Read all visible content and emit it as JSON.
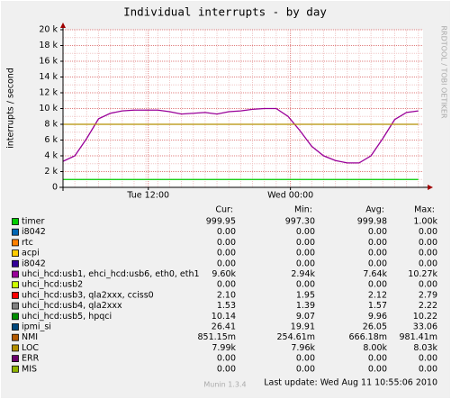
{
  "chart_data": {
    "type": "line",
    "title": "Individual interrupts - by day",
    "y_label": "interrupts / second",
    "side_label": "RRDTOOL / TOBI OETIKER",
    "x": [
      0,
      1,
      2,
      3,
      4,
      5,
      6,
      7,
      8,
      9,
      10,
      11,
      12,
      13,
      14,
      15,
      16,
      17,
      18,
      19,
      20,
      21,
      22,
      23,
      24,
      25,
      26,
      27,
      28,
      29,
      30
    ],
    "xlim": [
      0,
      30.4
    ],
    "xticks": [
      {
        "value": 7.2,
        "label": "Tue 12:00"
      },
      {
        "value": 19.2,
        "label": "Wed 00:00"
      }
    ],
    "ylim": [
      0,
      20000
    ],
    "yticks": [
      {
        "value": 0,
        "label": "0"
      },
      {
        "value": 2000,
        "label": "2 k"
      },
      {
        "value": 4000,
        "label": "4 k"
      },
      {
        "value": 6000,
        "label": "6 k"
      },
      {
        "value": 8000,
        "label": "8 k"
      },
      {
        "value": 10000,
        "label": "10 k"
      },
      {
        "value": 12000,
        "label": "12 k"
      },
      {
        "value": 14000,
        "label": "14 k"
      },
      {
        "value": 16000,
        "label": "16 k"
      },
      {
        "value": 18000,
        "label": "18 k"
      },
      {
        "value": 20000,
        "label": "20 k"
      }
    ],
    "grid": true,
    "columns": [
      "Cur:",
      "Min:",
      "Avg:",
      "Max:"
    ],
    "series": [
      {
        "name": "timer",
        "color": "#00cc00",
        "cur": "999.95",
        "min": "997.30",
        "avg": "999.98",
        "max": "1.00k",
        "values": [
          1000,
          1000,
          1000,
          1000,
          1000,
          1000,
          1000,
          1000,
          1000,
          1000,
          1000,
          1000,
          1000,
          1000,
          1000,
          1000,
          1000,
          1000,
          1000,
          1000,
          1000,
          1000,
          1000,
          1000,
          1000,
          1000,
          1000,
          1000,
          1000,
          1000,
          1000
        ]
      },
      {
        "name": "i8042",
        "color": "#0066b3",
        "cur": "0.00",
        "min": "0.00",
        "avg": "0.00",
        "max": "0.00"
      },
      {
        "name": "rtc",
        "color": "#ff8000",
        "cur": "0.00",
        "min": "0.00",
        "avg": "0.00",
        "max": "0.00"
      },
      {
        "name": "acpi",
        "color": "#ffcc00",
        "cur": "0.00",
        "min": "0.00",
        "avg": "0.00",
        "max": "0.00"
      },
      {
        "name": "i8042",
        "color": "#330099",
        "cur": "0.00",
        "min": "0.00",
        "avg": "0.00",
        "max": "0.00"
      },
      {
        "name": "uhci_hcd:usb1, ehci_hcd:usb6, eth0, eth1",
        "color": "#990099",
        "cur": "9.60k",
        "min": "2.94k",
        "avg": "7.64k",
        "max": "10.27k",
        "values": [
          3300,
          4000,
          6200,
          8700,
          9400,
          9700,
          9800,
          9800,
          9800,
          9600,
          9300,
          9400,
          9500,
          9300,
          9600,
          9700,
          9900,
          10000,
          10000,
          9000,
          7200,
          5200,
          4000,
          3400,
          3100,
          3100,
          4000,
          6200,
          8600,
          9500,
          9700
        ]
      },
      {
        "name": "uhci_hcd:usb2",
        "color": "#ccff00",
        "cur": "0.00",
        "min": "0.00",
        "avg": "0.00",
        "max": "0.00"
      },
      {
        "name": "uhci_hcd:usb3, qla2xxx, cciss0",
        "color": "#ff0000",
        "cur": "2.10",
        "min": "1.95",
        "avg": "2.12",
        "max": "2.79"
      },
      {
        "name": "uhci_hcd:usb4, qla2xxx",
        "color": "#808080",
        "cur": "1.53",
        "min": "1.39",
        "avg": "1.57",
        "max": "2.22"
      },
      {
        "name": "uhci_hcd:usb5, hpqci",
        "color": "#008f00",
        "cur": "10.14",
        "min": "9.07",
        "avg": "9.96",
        "max": "10.22"
      },
      {
        "name": "ipmi_si",
        "color": "#00487d",
        "cur": "26.41",
        "min": "19.91",
        "avg": "26.05",
        "max": "33.06"
      },
      {
        "name": "NMI",
        "color": "#b35a00",
        "cur": "851.15m",
        "min": "254.61m",
        "avg": "666.18m",
        "max": "981.41m"
      },
      {
        "name": "LOC",
        "color": "#b38f00",
        "cur": "7.99k",
        "min": "7.96k",
        "avg": "8.00k",
        "max": "8.03k",
        "values": [
          8000,
          8000,
          8000,
          8000,
          8000,
          8000,
          8000,
          8000,
          8000,
          8000,
          8000,
          8000,
          8000,
          8000,
          8000,
          8000,
          8000,
          8000,
          8000,
          8000,
          8000,
          8000,
          8000,
          8000,
          8000,
          8000,
          8000,
          8000,
          8000,
          8000,
          8000
        ]
      },
      {
        "name": "ERR",
        "color": "#6b006b",
        "cur": "0.00",
        "min": "0.00",
        "avg": "0.00",
        "max": "0.00"
      },
      {
        "name": "MIS",
        "color": "#8fb300",
        "cur": "0.00",
        "min": "0.00",
        "avg": "0.00",
        "max": "0.00"
      }
    ],
    "version": "Munin 1.3.4",
    "last_update": "Last update: Wed Aug 11 10:55:06 2010"
  }
}
